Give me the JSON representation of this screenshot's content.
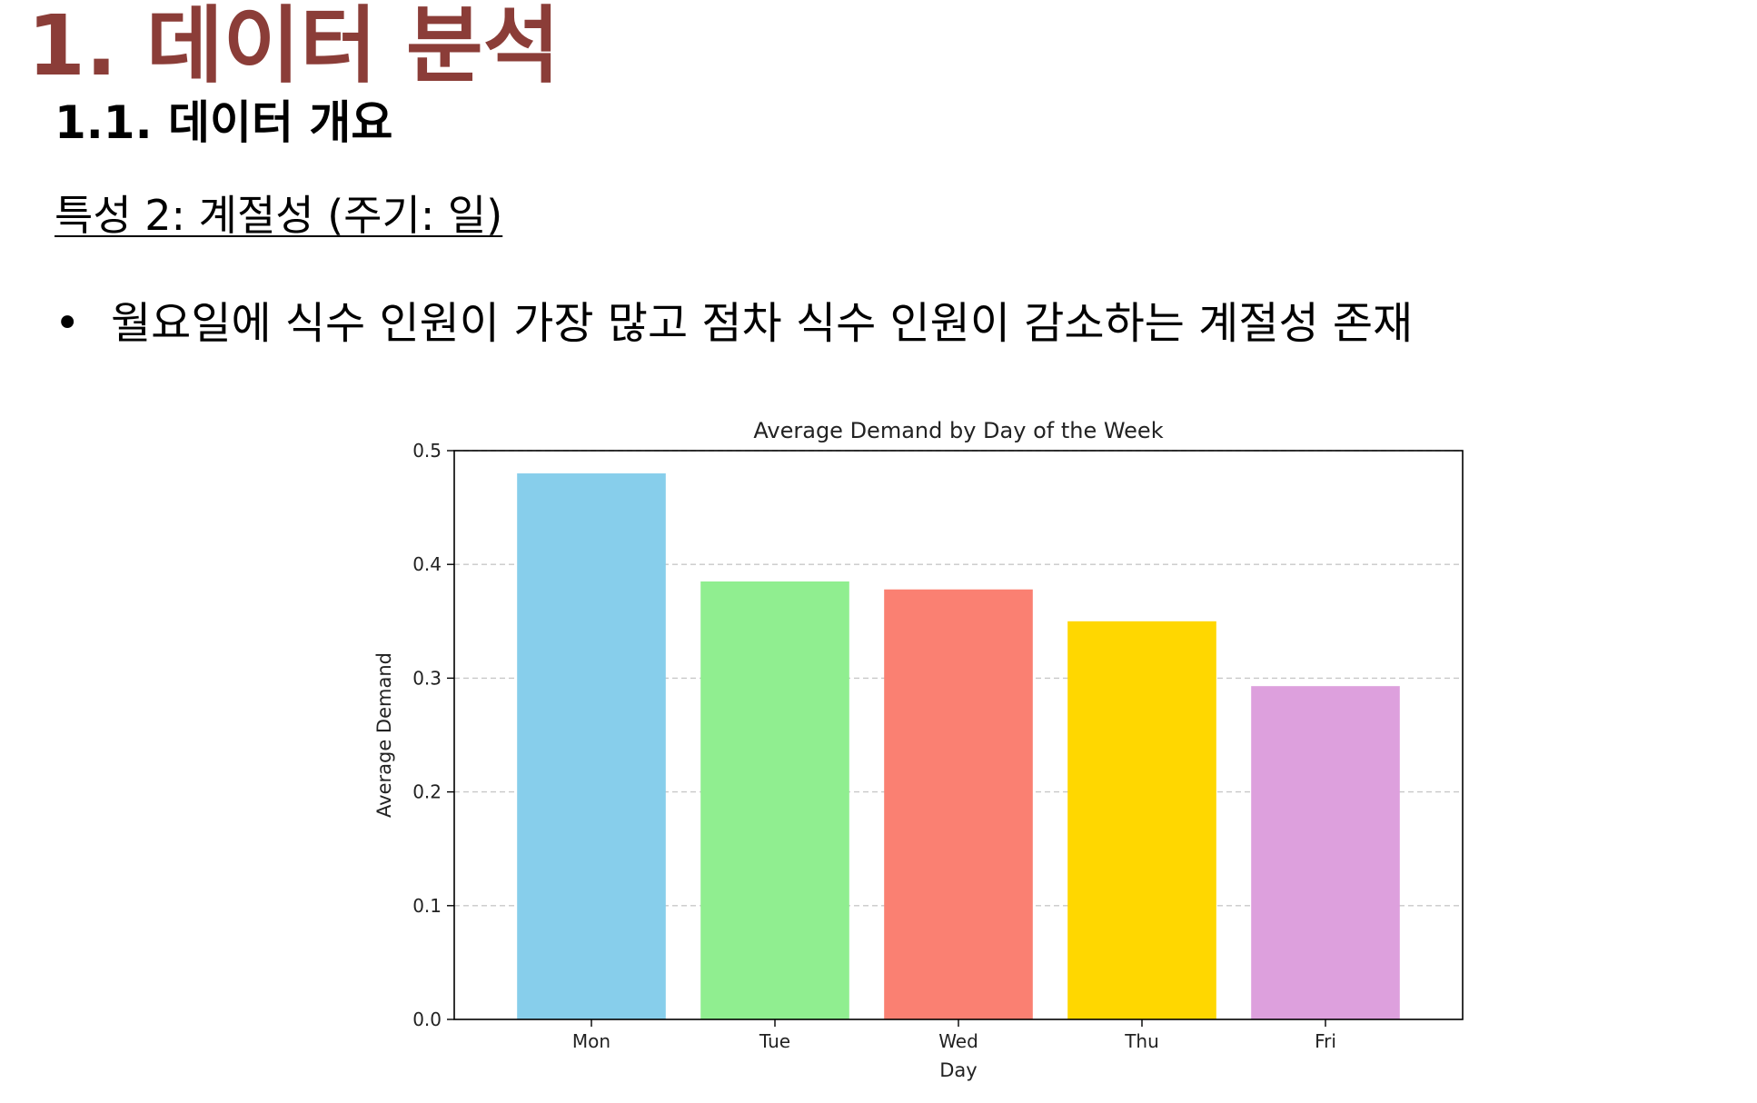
{
  "page": {
    "title": "1. 데이터 분석",
    "subtitle": "1.1. 데이터 개요",
    "feature_heading": "특성 2: 계절성 (주기: 일)",
    "bullet_marker": "•",
    "bullet_text": "월요일에 식수 인원이 가장 많고 점차 식수 인원이 감소하는 계절성 존재",
    "colors": {
      "title": "#8b3d38",
      "text": "#000000"
    }
  },
  "chart_data": {
    "type": "bar",
    "title": "Average Demand by Day of the Week",
    "xlabel": "Day",
    "ylabel": "Average Demand",
    "categories": [
      "Mon",
      "Tue",
      "Wed",
      "Thu",
      "Fri"
    ],
    "values": [
      0.48,
      0.385,
      0.378,
      0.35,
      0.293
    ],
    "bar_colors": [
      "#87ceeb",
      "#90ee90",
      "#fa8072",
      "#ffd700",
      "#dda0dd"
    ],
    "ylim": [
      0,
      0.5
    ],
    "yticks": [
      "0.0",
      "0.1",
      "0.2",
      "0.3",
      "0.4",
      "0.5"
    ],
    "grid": "y-dashed"
  }
}
